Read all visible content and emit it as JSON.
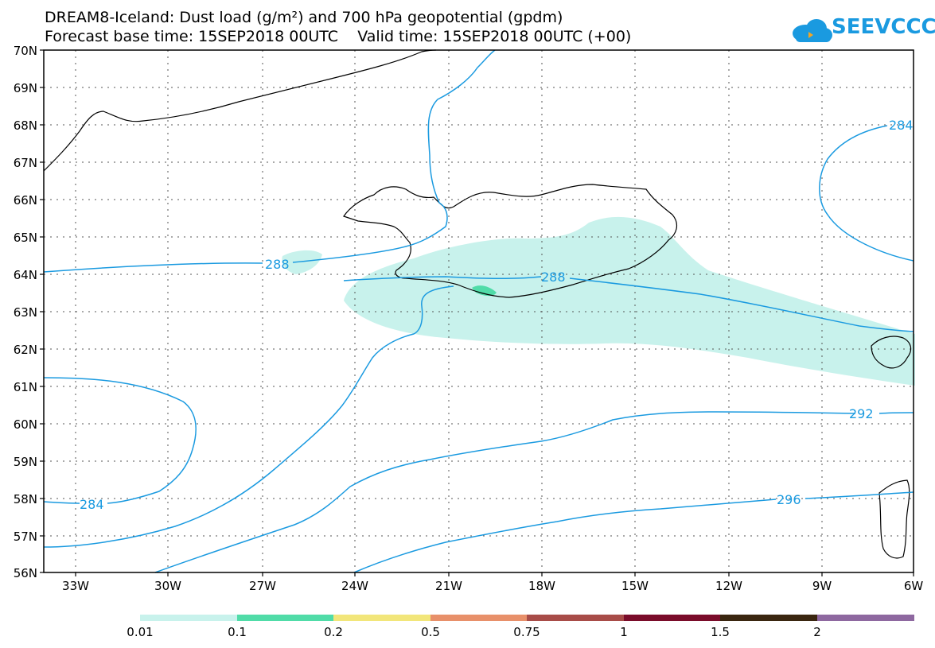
{
  "header": {
    "line1": "DREAM8-Iceland: Dust load (g/m²) and 700 hPa geopotential (gpdm)",
    "line2": "Forecast base time: 15SEP2018 00UTC    Valid time: 15SEP2018 00UTC (+00)"
  },
  "logo": {
    "text": "SEEVCCC"
  },
  "map": {
    "lat_labels": [
      "70N",
      "69N",
      "68N",
      "67N",
      "66N",
      "65N",
      "64N",
      "63N",
      "62N",
      "61N",
      "60N",
      "59N",
      "58N",
      "57N",
      "56N"
    ],
    "lon_labels": [
      "33W",
      "30W",
      "27W",
      "24W",
      "21W",
      "18W",
      "15W",
      "12W",
      "9W",
      "6W"
    ],
    "contour_labels": [
      "288",
      "288",
      "284",
      "284",
      "292",
      "296"
    ]
  },
  "colorbar": {
    "labels": [
      "0.01",
      "0.1",
      "0.2",
      "0.5",
      "0.75",
      "1",
      "1.5",
      "2"
    ],
    "colors": [
      "#c8f2ec",
      "#50dca8",
      "#f2e67a",
      "#e8906a",
      "#a84c48",
      "#7a0c2a",
      "#3a2610",
      "#8e68a0"
    ]
  },
  "colors": {
    "contour": "#1a9ae0",
    "dust_low": "#c8f2ec",
    "dust_mid": "#50dca8"
  }
}
